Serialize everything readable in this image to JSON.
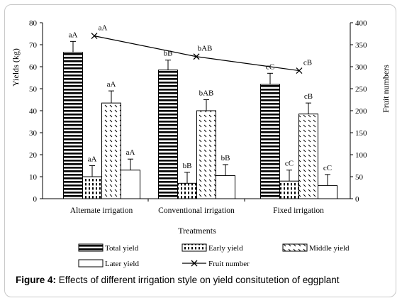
{
  "caption": {
    "label": "Figure 4:",
    "text": "Effects of different irrigation style on yield consitutetion of eggplant"
  },
  "chart_data": {
    "type": "bar",
    "title": "",
    "xlabel": "Treatments",
    "ylabel": "Yields (kg)",
    "y2label": "Fruit numbers",
    "categories": [
      "Alternate irrigation",
      "Conventional irrigation",
      "Fixed irrigation"
    ],
    "ylim": [
      0,
      80
    ],
    "y2lim": [
      0,
      400
    ],
    "yticks": [
      "0",
      "10",
      "20",
      "30",
      "40",
      "50",
      "60",
      "70",
      "80"
    ],
    "y2ticks": [
      "0",
      "50",
      "100",
      "150",
      "200",
      "250",
      "300",
      "350",
      "400"
    ],
    "grid": false,
    "legend_position": "bottom",
    "series": [
      {
        "name": "Total yield",
        "pattern": "horizontal-stripes",
        "values": [
          66.5,
          58.5,
          52.0
        ],
        "errors": [
          5.0,
          4.5,
          5.0
        ],
        "labels": [
          "aA",
          "bB",
          "cC"
        ]
      },
      {
        "name": "Early yield",
        "pattern": "vertical-dashes",
        "values": [
          10.0,
          7.0,
          8.0
        ],
        "errors": [
          5.0,
          5.0,
          5.0
        ],
        "labels": [
          "aA",
          "bB",
          "cC"
        ]
      },
      {
        "name": "Middle yield",
        "pattern": "diagonal-dashes",
        "values": [
          43.5,
          40.0,
          38.5
        ],
        "errors": [
          5.5,
          5.0,
          5.0
        ],
        "labels": [
          "aA",
          "bAB",
          "cB"
        ]
      },
      {
        "name": "Later yield",
        "pattern": "plain",
        "values": [
          13.0,
          10.5,
          6.0
        ],
        "errors": [
          5.0,
          5.0,
          5.0
        ],
        "labels": [
          "aA",
          "bB",
          "cC"
        ]
      }
    ],
    "line_series": {
      "name": "Fruit number",
      "axis": "right",
      "marker": "x",
      "values": [
        370,
        323,
        291
      ],
      "labels": [
        "aA",
        "bAB",
        "cB"
      ]
    }
  }
}
